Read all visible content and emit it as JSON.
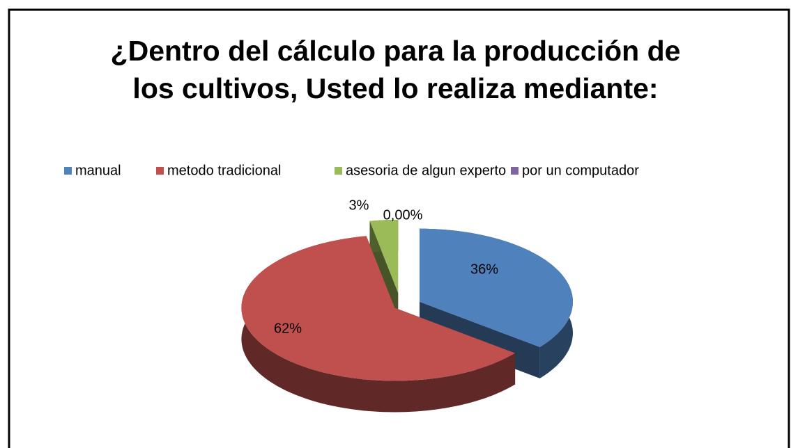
{
  "chart_data": {
    "type": "pie3d",
    "title": "¿Dentro del cálculo para la producción de los cultivos, Usted lo realiza mediante:",
    "categories": [
      "manual",
      "metodo tradicional",
      "asesoria de algun experto",
      "por un computador"
    ],
    "values": [
      36,
      62,
      3,
      0
    ],
    "value_labels": [
      "36%",
      "62%",
      "3%",
      "0,00%"
    ],
    "colors": [
      "#4f81bd",
      "#c0504d",
      "#9bbb59",
      "#8064a2"
    ],
    "legend": "top"
  }
}
